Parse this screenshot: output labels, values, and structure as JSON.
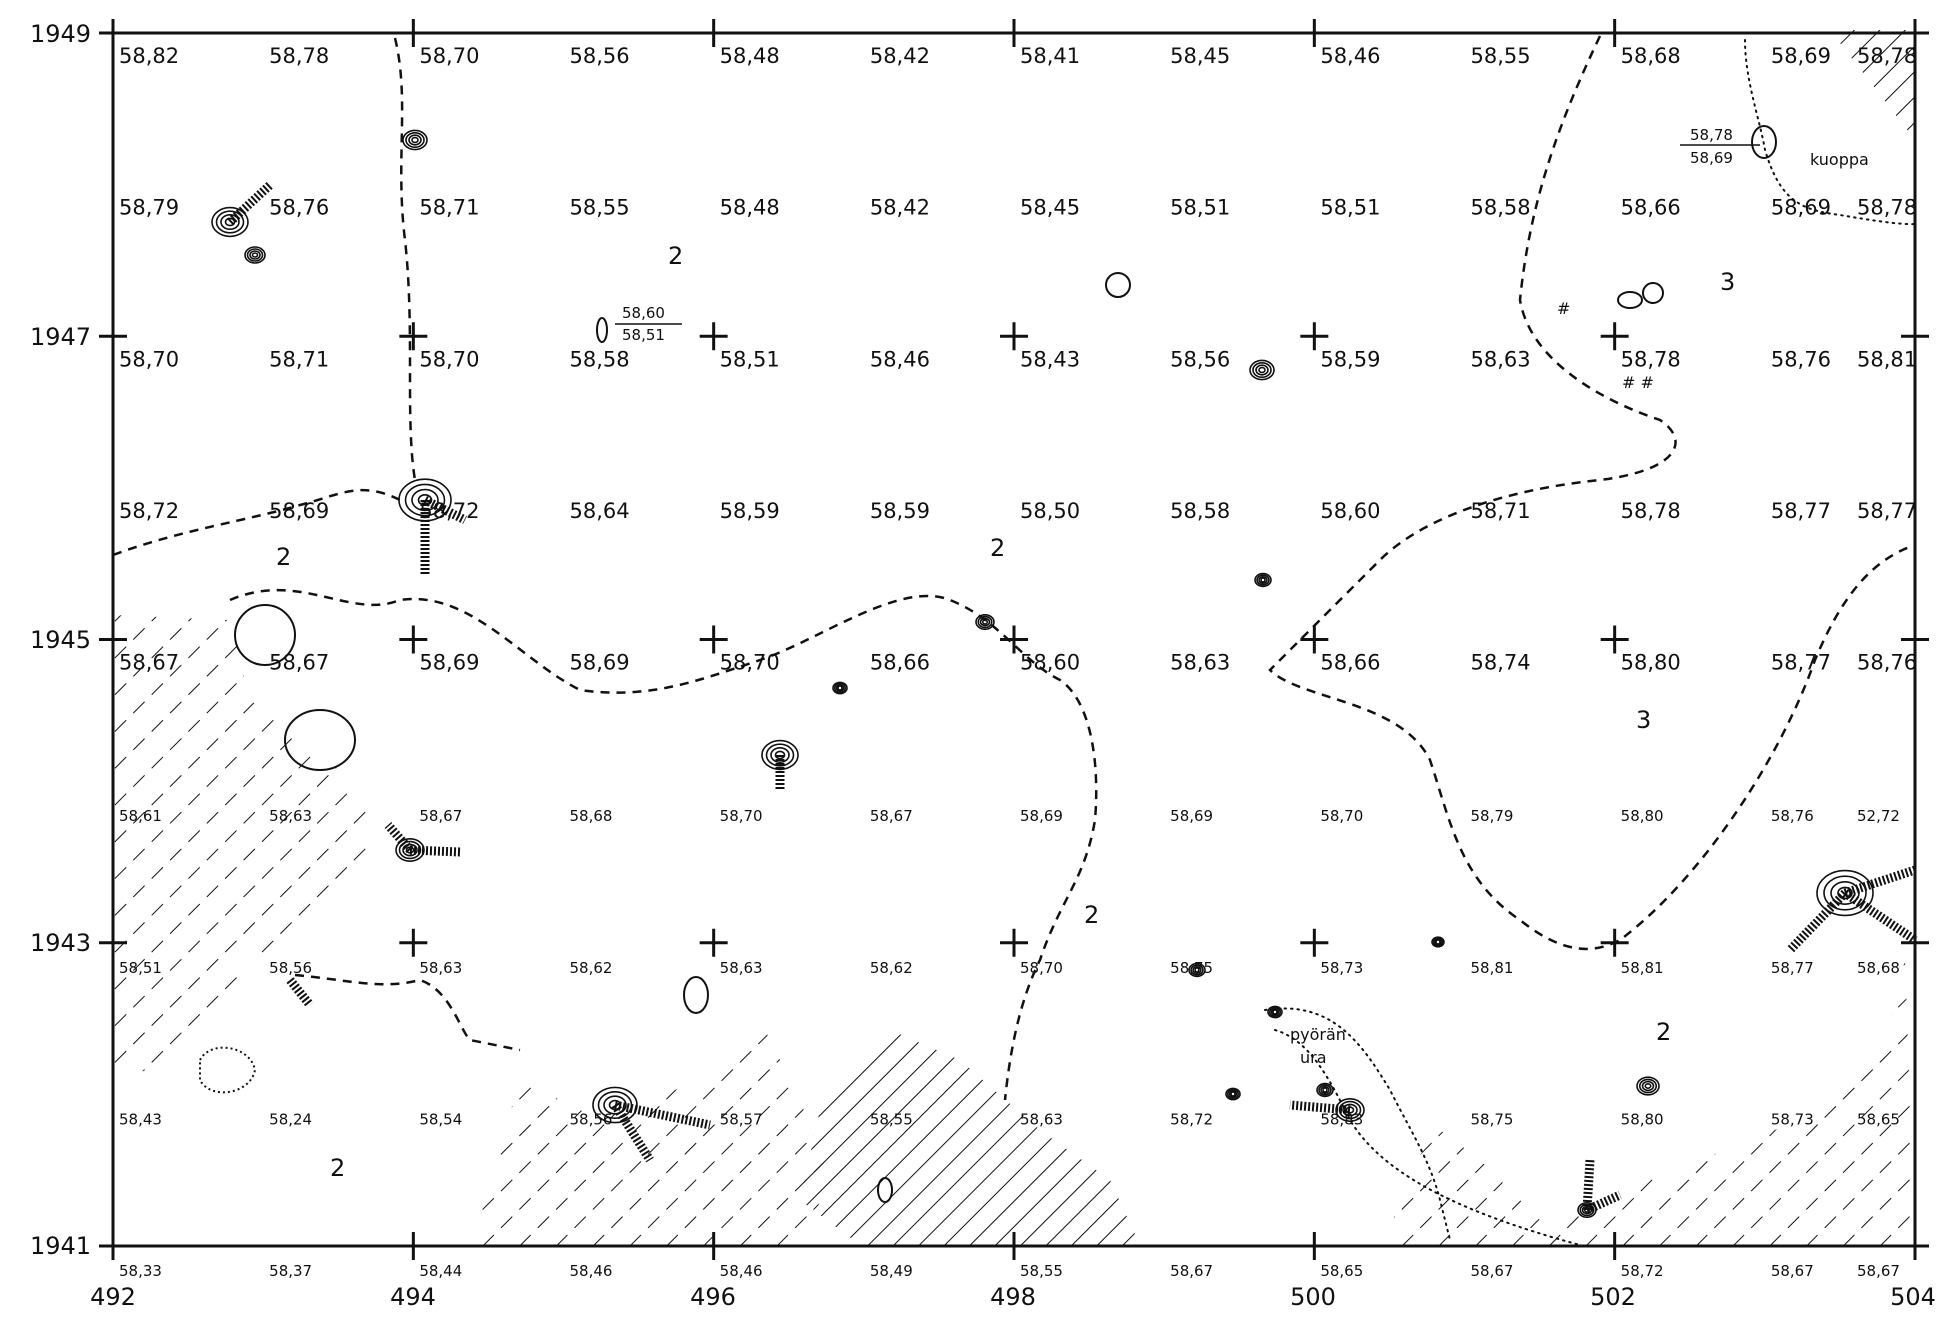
{
  "axes": {
    "x_ticks": [
      "492",
      "494",
      "496",
      "498",
      "500",
      "502",
      "504"
    ],
    "y_ticks": [
      "1949",
      "1947",
      "1945",
      "1943",
      "1941"
    ]
  },
  "elevation_rows": [
    [
      "58,82",
      "58,78",
      "58,70",
      "58,56",
      "58,48",
      "58,42",
      "58,41",
      "58,45",
      "58,46",
      "58,55",
      "58,68",
      "58,69",
      "58,78"
    ],
    [
      "58,79",
      "58,76",
      "58,71",
      "58,55",
      "58,48",
      "58,42",
      "58,45",
      "58,51",
      "58,51",
      "58,58",
      "58,66",
      "58,69",
      "58,78"
    ],
    [
      "58,70",
      "58,71",
      "58,70",
      "58,58",
      "58,51",
      "58,46",
      "58,43",
      "58,56",
      "58,59",
      "58,63",
      "58,78",
      "58,76",
      "58,81"
    ],
    [
      "58,72",
      "58,69",
      "58,72",
      "58,64",
      "58,59",
      "58,59",
      "58,50",
      "58,58",
      "58,60",
      "58,71",
      "58,78",
      "58,77",
      "58,77"
    ],
    [
      "58,67",
      "58,67",
      "58,69",
      "58,69",
      "58,70",
      "58,66",
      "58,60",
      "58,63",
      "58,66",
      "58,74",
      "58,80",
      "58,77",
      "58,76"
    ],
    [
      "58,61",
      "58,63",
      "58,67",
      "58,68",
      "58,70",
      "58,67",
      "58,69",
      "58,69",
      "58,70",
      "58,79",
      "58,80",
      "58,76",
      "52,72"
    ],
    [
      "58,51",
      "58,56",
      "58,63",
      "58,62",
      "58,63",
      "58,62",
      "58,70",
      "58,75",
      "58,73",
      "58,81",
      "58,81",
      "58,77",
      "58,68"
    ],
    [
      "58,43",
      "58,24",
      "58,54",
      "58,56",
      "58,57",
      "58,55",
      "58,63",
      "58,72",
      "58,83",
      "58,75",
      "58,80",
      "58,73",
      "58,65"
    ],
    [
      "58,33",
      "58,37",
      "58,44",
      "58,46",
      "58,46",
      "58,49",
      "58,55",
      "58,67",
      "58,65",
      "58,67",
      "58,72",
      "58,67",
      "58,67"
    ]
  ],
  "zone_labels": [
    {
      "text": "2",
      "near": "upper-center-left"
    },
    {
      "text": "3",
      "near": "upper-right"
    },
    {
      "text": "2",
      "near": "left-middle"
    },
    {
      "text": "2",
      "near": "center"
    },
    {
      "text": "3",
      "near": "right-middle"
    },
    {
      "text": "2",
      "near": "lower-center"
    },
    {
      "text": "2",
      "near": "lower-right"
    },
    {
      "text": "2",
      "near": "lower-left"
    }
  ],
  "annotations": {
    "pit_label": "kuoppa",
    "pit_fraction_top": "58,78",
    "pit_fraction_bottom": "58,69",
    "stone_fraction_top": "58,60",
    "stone_fraction_bottom": "58,51",
    "wheel_rut_line1": "pyörän",
    "wheel_rut_line2": "ura",
    "hash_marks": "#",
    "hash_marks_pair": "# #"
  }
}
